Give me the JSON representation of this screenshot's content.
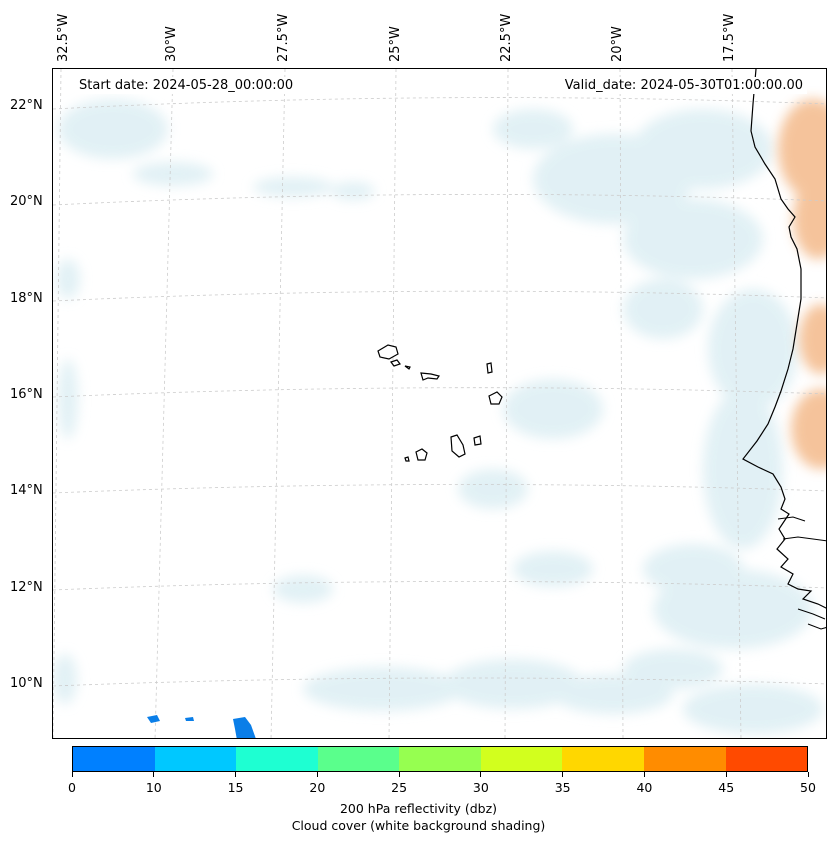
{
  "map": {
    "start_date": "Start date: 2024-05-28_00:00:00",
    "valid_date": "Valid_date: 2024-05-30T01:00:00.00",
    "lon_labels": [
      "32.5°W",
      "30°W",
      "27.5°W",
      "25°W",
      "22.5°W",
      "20°W",
      "17.5°W"
    ],
    "lat_labels": [
      "22°N",
      "20°N",
      "18°N",
      "16°N",
      "14°N",
      "12°N",
      "10°N"
    ],
    "region": "Cape Verde / West African coast"
  },
  "colorbar": {
    "ticks": [
      "0",
      "10",
      "15",
      "20",
      "25",
      "30",
      "35",
      "40",
      "45",
      "50"
    ],
    "colors": [
      "#0080ff",
      "#00c8ff",
      "#1effd2",
      "#5aff8c",
      "#96ff50",
      "#d2ff1e",
      "#ffd700",
      "#ff8c00",
      "#ff4a00"
    ],
    "label_line1": "200 hPa reflectivity (dbz)",
    "label_line2": "Cloud cover (white background shading)"
  },
  "colors": {
    "cloud_shading": "#d8ecf2",
    "land_shading": "#f2b07a",
    "coastline": "#000000",
    "grid": "#cccccc",
    "reflectivity_low": "#0a7ee8"
  }
}
